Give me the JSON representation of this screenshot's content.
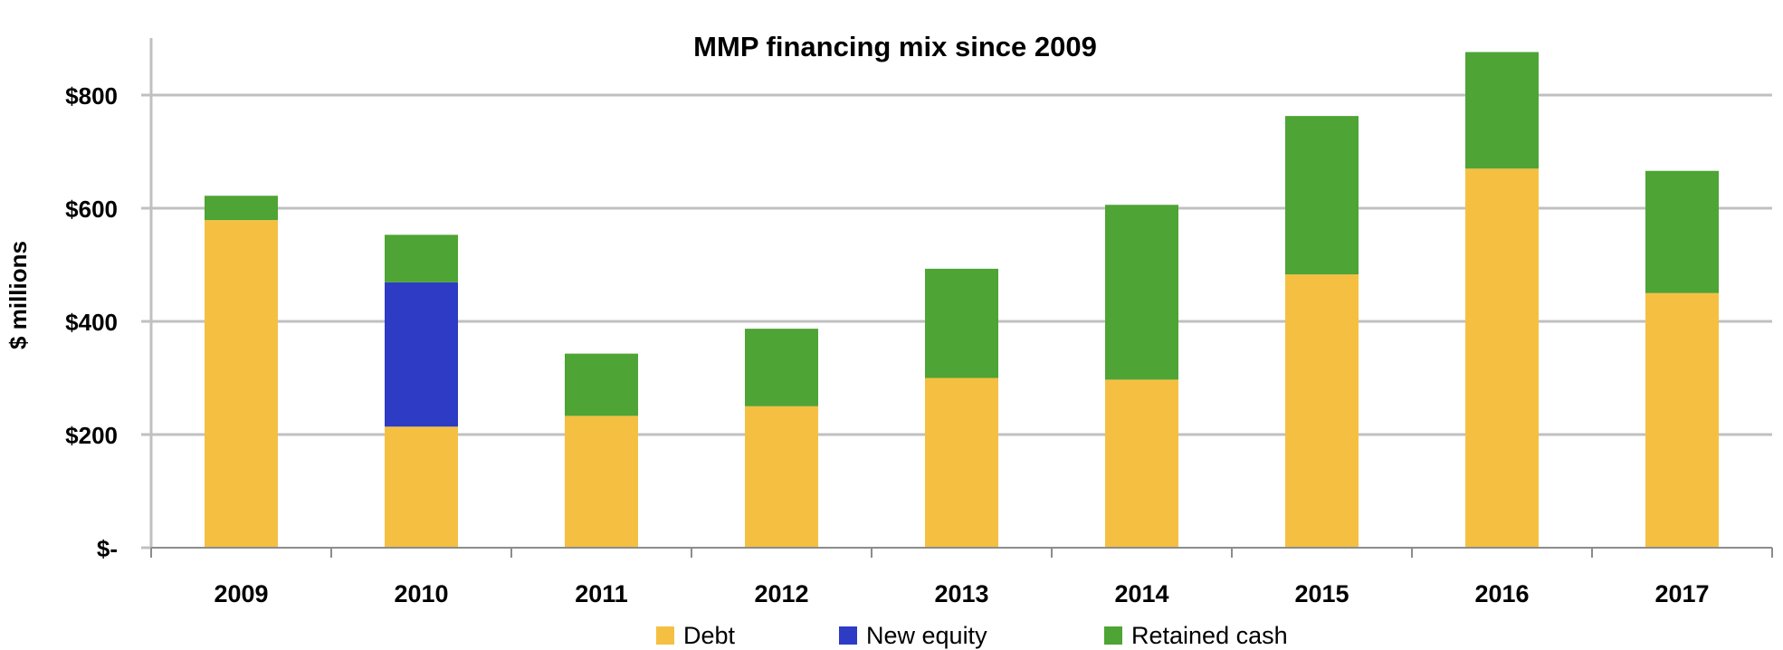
{
  "chart_data": {
    "type": "bar",
    "stacked": true,
    "title": "MMP financing mix since 2009",
    "xlabel": "",
    "ylabel": "$ millions",
    "ylim": [
      0,
      900
    ],
    "yticks": [
      0,
      200,
      400,
      600,
      800
    ],
    "ytick_labels": [
      "$-",
      "$200",
      "$400",
      "$600",
      "$800"
    ],
    "grid": true,
    "legend_position": "bottom",
    "categories": [
      "2009",
      "2010",
      "2011",
      "2012",
      "2013",
      "2014",
      "2015",
      "2016",
      "2017"
    ],
    "series": [
      {
        "name": "Debt",
        "color": "#F5C042",
        "values": [
          579,
          214,
          233,
          250,
          300,
          297,
          483,
          670,
          450
        ]
      },
      {
        "name": "New equity",
        "color": "#2E3BC4",
        "values": [
          0,
          255,
          0,
          0,
          0,
          0,
          0,
          0,
          0
        ]
      },
      {
        "name": "Retained cash",
        "color": "#4EA434",
        "values": [
          43,
          84,
          110,
          137,
          193,
          309,
          280,
          206,
          216
        ]
      }
    ]
  },
  "colors": {
    "grid": "#C0C0C0",
    "axis": "#8C8C8C",
    "text": "#000000"
  }
}
